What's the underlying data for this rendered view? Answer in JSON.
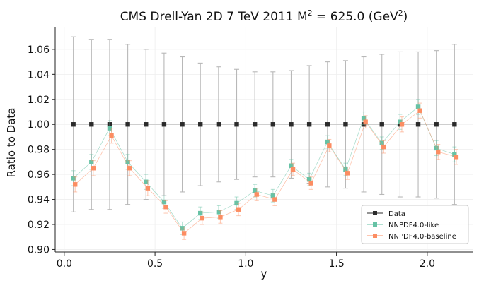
{
  "chart_data": {
    "type": "scatter",
    "title_main": "CMS Drell-Yan 2D 7 TeV 2011 M",
    "title_sup1": "2",
    "title_mid": " = 625.0 (GeV",
    "title_sup2": "2",
    "title_end": ")",
    "xlabel": "y",
    "ylabel": "Ratio to Data",
    "xlim": [
      -0.05,
      2.25
    ],
    "ylim": [
      0.898,
      1.078
    ],
    "xticks": [
      0.0,
      0.5,
      1.0,
      1.5,
      2.0
    ],
    "xtick_labels": [
      "0.0",
      "0.5",
      "1.0",
      "1.5",
      "2.0"
    ],
    "yticks": [
      0.9,
      0.92,
      0.94,
      0.96,
      0.98,
      1.0,
      1.02,
      1.04,
      1.06
    ],
    "ytick_labels": [
      "0.90",
      "0.92",
      "0.94",
      "0.96",
      "0.98",
      "1.00",
      "1.02",
      "1.04",
      "1.06"
    ],
    "grid": true,
    "legend_position": "bottom-right",
    "series": [
      {
        "name": "Data",
        "color": "#2b2b2b",
        "err_color": "#b8b8b8",
        "x": [
          0.05,
          0.15,
          0.25,
          0.35,
          0.45,
          0.55,
          0.65,
          0.75,
          0.85,
          0.95,
          1.05,
          1.15,
          1.25,
          1.35,
          1.45,
          1.55,
          1.65,
          1.75,
          1.85,
          1.95,
          2.05,
          2.15
        ],
        "y": [
          1.0,
          1.0,
          1.0,
          1.0,
          1.0,
          1.0,
          1.0,
          1.0,
          1.0,
          1.0,
          1.0,
          1.0,
          1.0,
          1.0,
          1.0,
          1.0,
          1.0,
          1.0,
          1.0,
          1.0,
          1.0,
          1.0
        ],
        "err": [
          0.07,
          0.068,
          0.068,
          0.064,
          0.06,
          0.057,
          0.054,
          0.049,
          0.046,
          0.044,
          0.042,
          0.042,
          0.043,
          0.047,
          0.05,
          0.051,
          0.054,
          0.056,
          0.058,
          0.058,
          0.059,
          0.064
        ]
      },
      {
        "name": "NNPDF4.0-like",
        "color": "#66c2a5",
        "x": [
          0.05,
          0.15,
          0.25,
          0.35,
          0.45,
          0.55,
          0.65,
          0.75,
          0.85,
          0.95,
          1.05,
          1.15,
          1.25,
          1.35,
          1.45,
          1.55,
          1.65,
          1.75,
          1.85,
          1.95,
          2.05,
          2.15
        ],
        "y": [
          0.957,
          0.97,
          0.997,
          0.97,
          0.954,
          0.938,
          0.917,
          0.929,
          0.93,
          0.937,
          0.947,
          0.943,
          0.967,
          0.956,
          0.986,
          0.964,
          1.005,
          0.985,
          1.002,
          1.014,
          0.981,
          0.976
        ],
        "err": [
          0.006,
          0.006,
          0.006,
          0.006,
          0.006,
          0.005,
          0.005,
          0.005,
          0.005,
          0.005,
          0.005,
          0.005,
          0.005,
          0.005,
          0.005,
          0.005,
          0.005,
          0.005,
          0.006,
          0.006,
          0.006,
          0.006
        ]
      },
      {
        "name": "NNPDF4.0-baseline",
        "color": "#fc8d62",
        "x": [
          0.06,
          0.16,
          0.26,
          0.36,
          0.46,
          0.56,
          0.66,
          0.76,
          0.86,
          0.96,
          1.06,
          1.16,
          1.26,
          1.36,
          1.46,
          1.56,
          1.66,
          1.76,
          1.86,
          1.96,
          2.06,
          2.16
        ],
        "y": [
          0.952,
          0.965,
          0.991,
          0.965,
          0.949,
          0.934,
          0.913,
          0.925,
          0.926,
          0.932,
          0.944,
          0.94,
          0.964,
          0.953,
          0.983,
          0.961,
          1.002,
          0.982,
          1.0,
          1.011,
          0.978,
          0.974
        ],
        "err": [
          0.006,
          0.006,
          0.006,
          0.006,
          0.006,
          0.005,
          0.005,
          0.005,
          0.005,
          0.005,
          0.005,
          0.005,
          0.005,
          0.005,
          0.005,
          0.005,
          0.005,
          0.005,
          0.006,
          0.006,
          0.006,
          0.006
        ]
      }
    ]
  }
}
